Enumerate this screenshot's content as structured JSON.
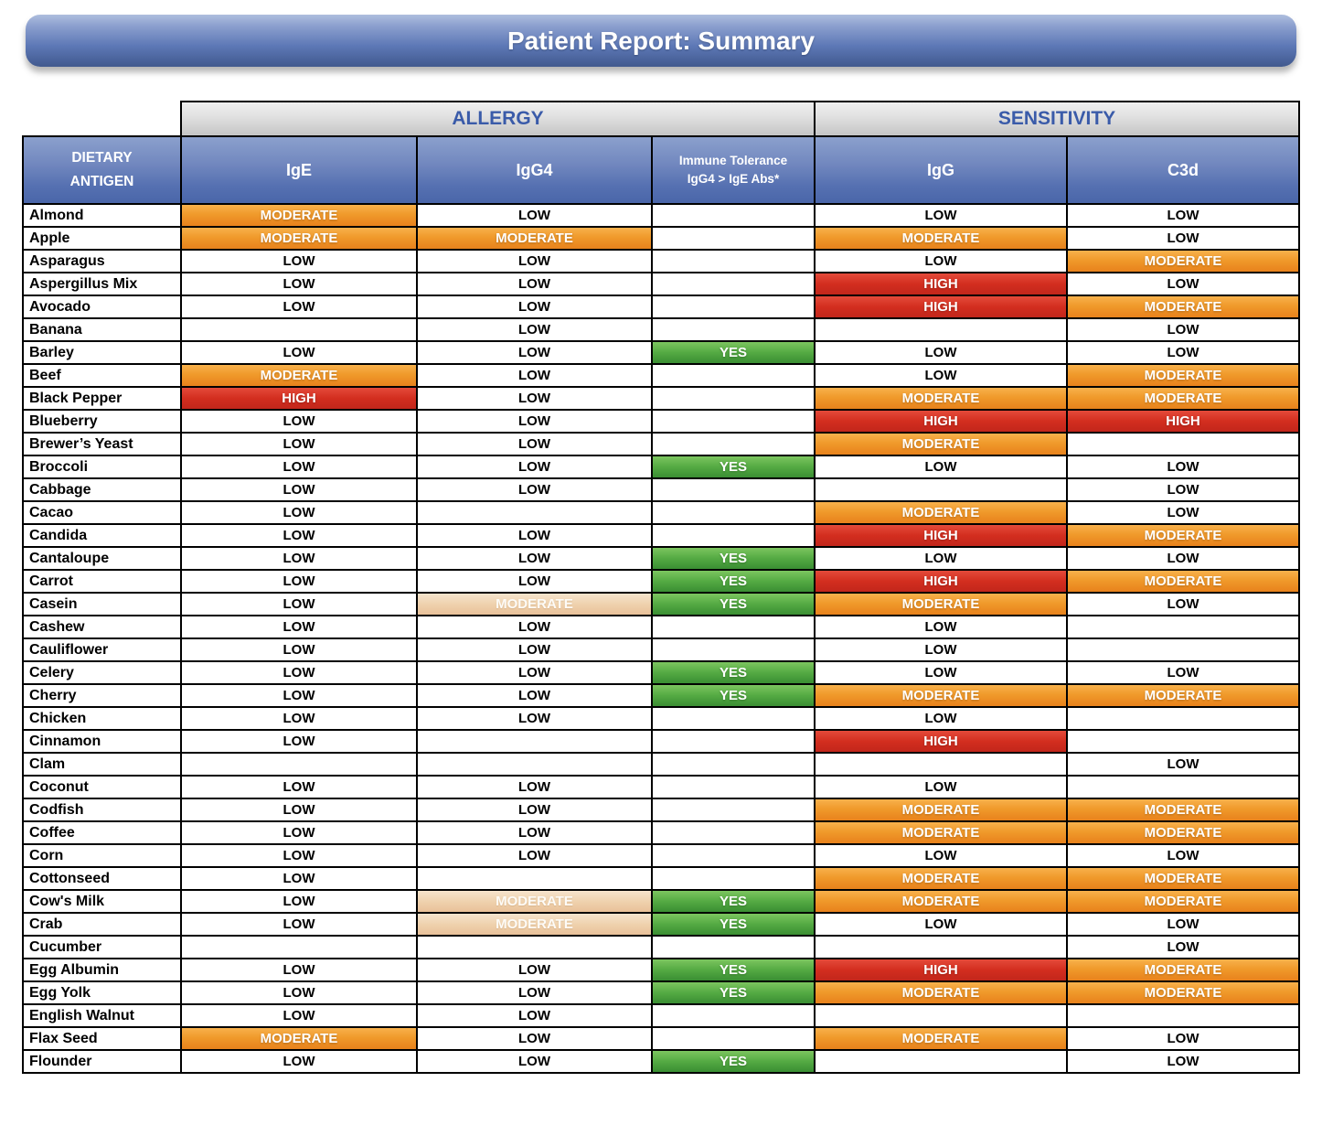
{
  "title": "Patient Report: Summary",
  "table": {
    "groups": {
      "allergy": "ALLERGY",
      "sensitivity": "SENSITIVITY"
    },
    "antigen_header": {
      "line1": "DIETARY",
      "line2": "ANTIGEN"
    },
    "columns": [
      {
        "key": "ige",
        "label": "IgE"
      },
      {
        "key": "igg4",
        "label": "IgG4"
      },
      {
        "key": "tolerance",
        "label": "Immune Tolerance",
        "sublabel": "IgG4 > IgE Abs*"
      },
      {
        "key": "igg",
        "label": "IgG"
      },
      {
        "key": "c3d",
        "label": "C3d"
      }
    ],
    "value_levels": [
      "LOW",
      "MODERATE",
      "HIGH",
      "YES"
    ],
    "rows": [
      {
        "antigen": "Almond",
        "values": [
          "MODERATE",
          "LOW",
          "",
          "LOW",
          "LOW"
        ]
      },
      {
        "antigen": "Apple",
        "values": [
          "MODERATE",
          "MODERATE",
          "",
          "MODERATE",
          "LOW"
        ]
      },
      {
        "antigen": "Asparagus",
        "values": [
          "LOW",
          "LOW",
          "",
          "LOW",
          "MODERATE"
        ]
      },
      {
        "antigen": "Aspergillus Mix",
        "values": [
          "LOW",
          "LOW",
          "",
          "HIGH",
          "LOW"
        ]
      },
      {
        "antigen": "Avocado",
        "values": [
          "LOW",
          "LOW",
          "",
          "HIGH",
          "MODERATE"
        ]
      },
      {
        "antigen": "Banana",
        "values": [
          "",
          "LOW",
          "",
          "",
          "LOW"
        ]
      },
      {
        "antigen": "Barley",
        "values": [
          "LOW",
          "LOW",
          "YES",
          "LOW",
          "LOW"
        ]
      },
      {
        "antigen": "Beef",
        "values": [
          "MODERATE",
          "LOW",
          "",
          "LOW",
          "MODERATE"
        ]
      },
      {
        "antigen": "Black Pepper",
        "values": [
          "HIGH",
          "LOW",
          "",
          "MODERATE",
          "MODERATE"
        ]
      },
      {
        "antigen": "Blueberry",
        "values": [
          "LOW",
          "LOW",
          "",
          "HIGH",
          "HIGH"
        ]
      },
      {
        "antigen": "Brewer’s Yeast",
        "values": [
          "LOW",
          "LOW",
          "",
          "MODERATE",
          ""
        ]
      },
      {
        "antigen": "Broccoli",
        "values": [
          "LOW",
          "LOW",
          "YES",
          "LOW",
          "LOW"
        ]
      },
      {
        "antigen": "Cabbage",
        "values": [
          "LOW",
          "LOW",
          "",
          "",
          "LOW"
        ]
      },
      {
        "antigen": "Cacao",
        "values": [
          "LOW",
          "",
          "",
          "MODERATE",
          "LOW"
        ]
      },
      {
        "antigen": "Candida",
        "values": [
          "LOW",
          "LOW",
          "",
          "HIGH",
          "MODERATE"
        ]
      },
      {
        "antigen": "Cantaloupe",
        "values": [
          "LOW",
          "LOW",
          "YES",
          "LOW",
          "LOW"
        ]
      },
      {
        "antigen": "Carrot",
        "values": [
          "LOW",
          "LOW",
          "YES",
          "HIGH",
          "MODERATE"
        ]
      },
      {
        "antigen": "Casein",
        "values": [
          "LOW",
          "MODERATE",
          "YES",
          "MODERATE",
          "LOW"
        ],
        "faded": [
          1
        ]
      },
      {
        "antigen": "Cashew",
        "values": [
          "LOW",
          "LOW",
          "",
          "LOW",
          ""
        ]
      },
      {
        "antigen": "Cauliflower",
        "values": [
          "LOW",
          "LOW",
          "",
          "LOW",
          ""
        ]
      },
      {
        "antigen": "Celery",
        "values": [
          "LOW",
          "LOW",
          "YES",
          "LOW",
          "LOW"
        ]
      },
      {
        "antigen": "Cherry",
        "values": [
          "LOW",
          "LOW",
          "YES",
          "MODERATE",
          "MODERATE"
        ]
      },
      {
        "antigen": "Chicken",
        "values": [
          "LOW",
          "LOW",
          "",
          "LOW",
          ""
        ]
      },
      {
        "antigen": "Cinnamon",
        "values": [
          "LOW",
          "",
          "",
          "HIGH",
          ""
        ]
      },
      {
        "antigen": "Clam",
        "values": [
          "",
          "",
          "",
          "",
          "LOW"
        ]
      },
      {
        "antigen": "Coconut",
        "values": [
          "LOW",
          "LOW",
          "",
          "LOW",
          ""
        ]
      },
      {
        "antigen": "Codfish",
        "values": [
          "LOW",
          "LOW",
          "",
          "MODERATE",
          "MODERATE"
        ]
      },
      {
        "antigen": "Coffee",
        "values": [
          "LOW",
          "LOW",
          "",
          "MODERATE",
          "MODERATE"
        ]
      },
      {
        "antigen": "Corn",
        "values": [
          "LOW",
          "LOW",
          "",
          "LOW",
          "LOW"
        ]
      },
      {
        "antigen": "Cottonseed",
        "values": [
          "LOW",
          "",
          "",
          "MODERATE",
          "MODERATE"
        ]
      },
      {
        "antigen": "Cow's Milk",
        "values": [
          "LOW",
          "MODERATE",
          "YES",
          "MODERATE",
          "MODERATE"
        ],
        "faded": [
          1
        ]
      },
      {
        "antigen": "Crab",
        "values": [
          "LOW",
          "MODERATE",
          "YES",
          "LOW",
          "LOW"
        ],
        "faded": [
          1
        ]
      },
      {
        "antigen": "Cucumber",
        "values": [
          "",
          "",
          "",
          "",
          "LOW"
        ]
      },
      {
        "antigen": "Egg Albumin",
        "values": [
          "LOW",
          "LOW",
          "YES",
          "HIGH",
          "MODERATE"
        ]
      },
      {
        "antigen": "Egg Yolk",
        "values": [
          "LOW",
          "LOW",
          "YES",
          "MODERATE",
          "MODERATE"
        ]
      },
      {
        "antigen": "English Walnut",
        "values": [
          "LOW",
          "LOW",
          "",
          "",
          ""
        ]
      },
      {
        "antigen": "Flax Seed",
        "values": [
          "MODERATE",
          "LOW",
          "",
          "MODERATE",
          "LOW"
        ]
      },
      {
        "antigen": "Flounder",
        "values": [
          "LOW",
          "LOW",
          "YES",
          "",
          "LOW"
        ]
      }
    ]
  },
  "colors": {
    "title_bar_blue": "#5d78b6",
    "header_blue": "#5570b1",
    "band_gray": "#d9d9d9",
    "band_text_blue": "#3a5ba9",
    "moderate_orange": "#f09a2b",
    "moderate_faded_peach": "#efd2ae",
    "high_red": "#d32e1f",
    "yes_green": "#54aa43",
    "border_black": "#000000",
    "text_white": "#ffffff",
    "text_black": "#000000"
  }
}
